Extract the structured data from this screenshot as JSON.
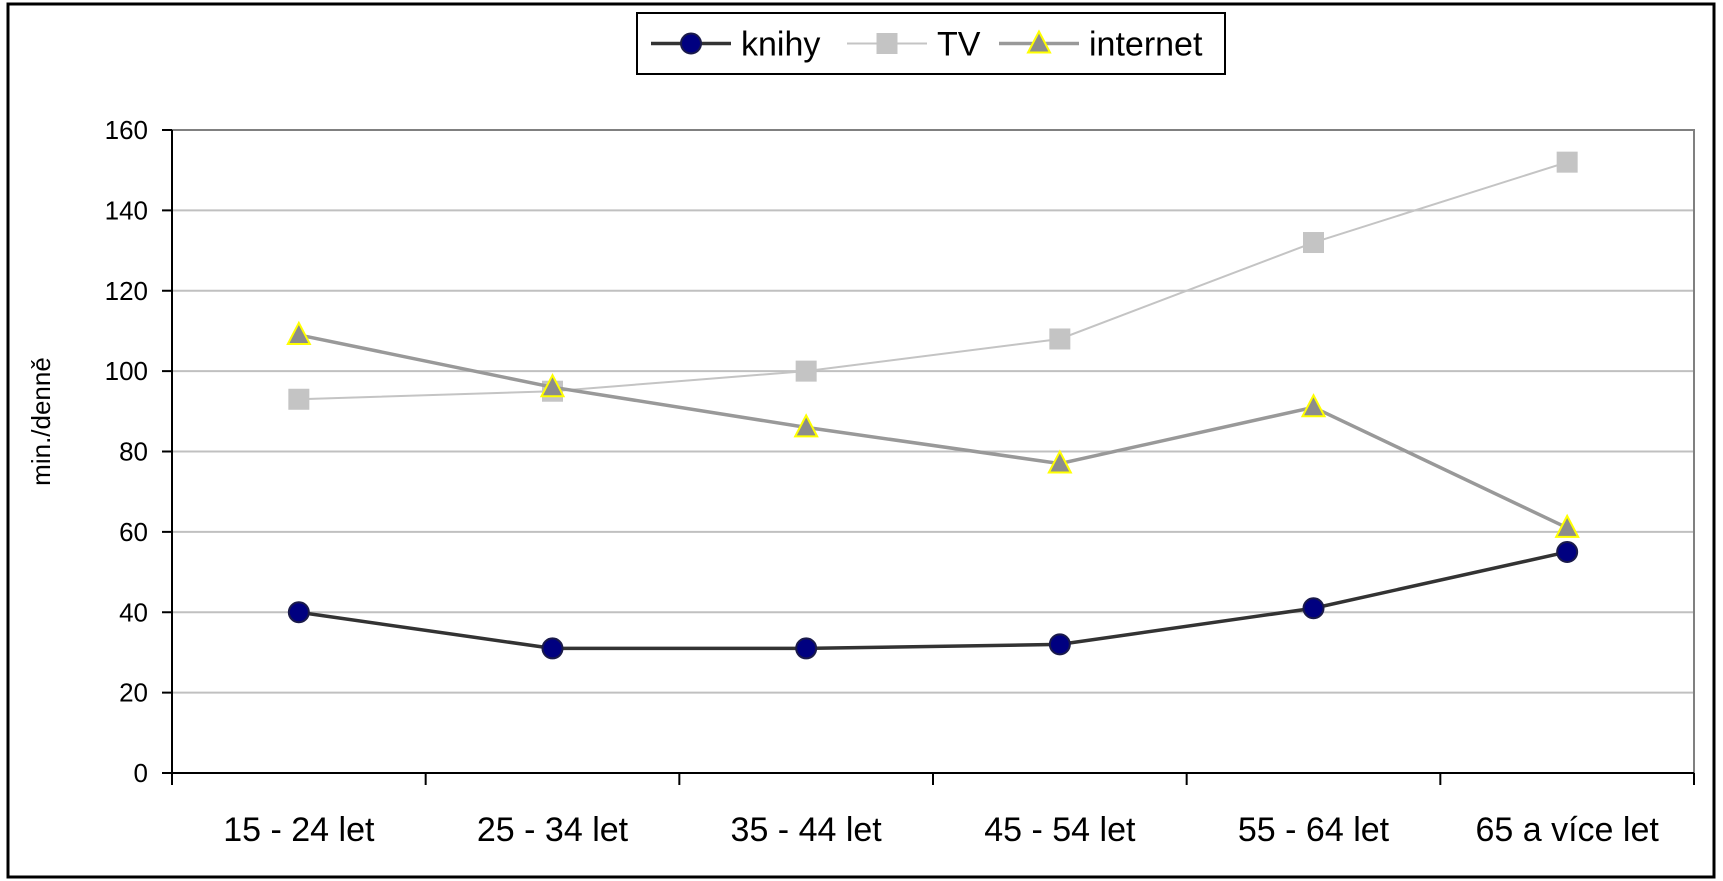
{
  "chart_data": {
    "type": "line",
    "categories": [
      "15 - 24 let",
      "25 - 34 let",
      "35 - 44 let",
      "45 - 54 let",
      "55 - 64 let",
      "65 a více let"
    ],
    "series": [
      {
        "name": "knihy",
        "values": [
          40,
          31,
          31,
          32,
          41,
          55
        ],
        "line_color": "#333333",
        "marker": "circle",
        "marker_fill": "#000080",
        "marker_stroke": "#1a1a4a"
      },
      {
        "name": "TV",
        "values": [
          93,
          95,
          100,
          108,
          132,
          152
        ],
        "line_color": "#c4c4c4",
        "marker": "square",
        "marker_fill": "#c4c4c4",
        "marker_stroke": "#c4c4c4"
      },
      {
        "name": "internet",
        "values": [
          109,
          96,
          86,
          77,
          91,
          61
        ],
        "line_color": "#999999",
        "marker": "triangle",
        "marker_fill": "#8c8c8c",
        "marker_stroke": "#ffff00"
      }
    ],
    "title": "",
    "xlabel": "",
    "ylabel": "min./denně",
    "ylim": [
      0,
      160
    ],
    "yticks": [
      0,
      20,
      40,
      60,
      80,
      100,
      120,
      140,
      160
    ],
    "grid": true,
    "legend_position": "top-center",
    "colors": {
      "frame": "#000000",
      "plot_border": "#808080",
      "grid": "#c0c0c0",
      "axis": "#000000"
    }
  }
}
